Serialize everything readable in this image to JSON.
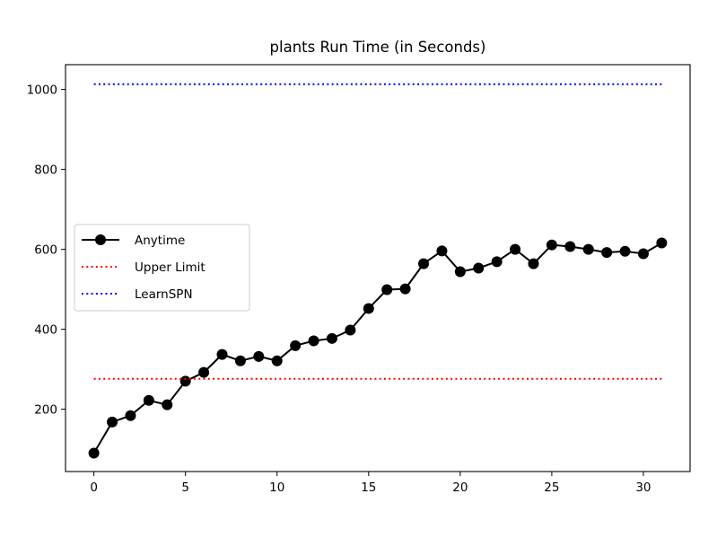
{
  "chart_data": {
    "type": "line",
    "title": "plants Run Time (in Seconds)",
    "xlabel": "",
    "ylabel": "",
    "xlim": [
      -1.55,
      32.55
    ],
    "ylim": [
      44,
      1062
    ],
    "xticks": [
      0,
      5,
      10,
      15,
      20,
      25,
      30
    ],
    "yticks": [
      200,
      400,
      600,
      800,
      1000
    ],
    "grid": false,
    "legend_position": "center-left",
    "series": [
      {
        "name": "Anytime",
        "style": "solid",
        "marker": "circle",
        "color": "#000000",
        "x": [
          0,
          1,
          2,
          3,
          4,
          5,
          6,
          7,
          8,
          9,
          10,
          11,
          12,
          13,
          14,
          15,
          16,
          17,
          18,
          19,
          20,
          21,
          22,
          23,
          24,
          25,
          26,
          27,
          28,
          29,
          30,
          31
        ],
        "y": [
          90,
          168,
          184,
          222,
          211,
          270,
          292,
          337,
          321,
          332,
          321,
          359,
          371,
          377,
          398,
          452,
          499,
          501,
          564,
          596,
          544,
          553,
          569,
          600,
          564,
          611,
          607,
          600,
          592,
          595,
          589,
          616
        ]
      },
      {
        "name": "Upper Limit",
        "style": "dotted",
        "color": "#ff0000",
        "x": [
          0,
          31
        ],
        "y": [
          276,
          276
        ]
      },
      {
        "name": "LearnSPN",
        "style": "dotted",
        "color": "#0000ff",
        "x": [
          0,
          31
        ],
        "y": [
          1013,
          1013
        ]
      }
    ]
  }
}
